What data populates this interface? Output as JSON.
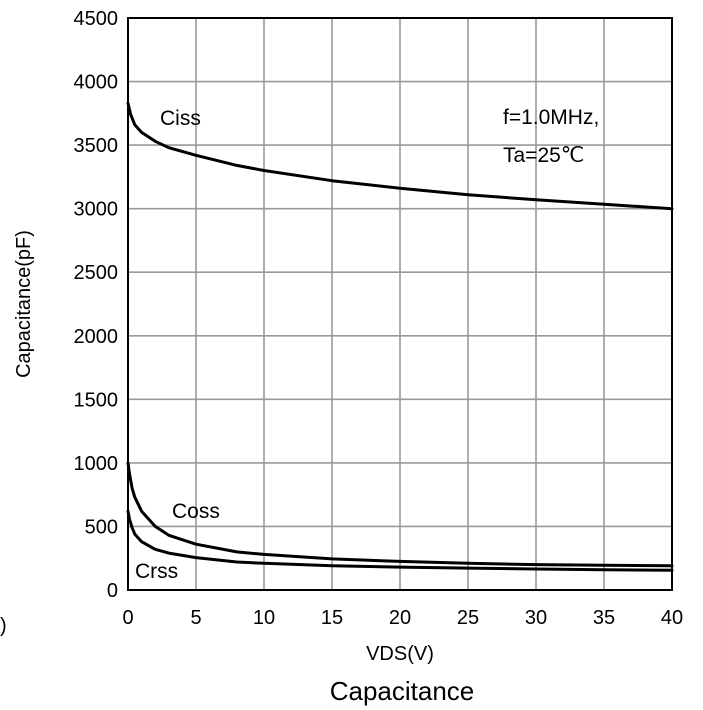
{
  "chart_data": {
    "type": "line",
    "xlabel": "VDS(V)",
    "ylabel": "Capacitance(pF)",
    "caption": "Capacitance",
    "xlim": [
      0,
      40
    ],
    "ylim": [
      0,
      4500
    ],
    "xticks": [
      0,
      5,
      10,
      15,
      20,
      25,
      30,
      35,
      40
    ],
    "yticks": [
      0,
      500,
      1000,
      1500,
      2000,
      2500,
      3000,
      3500,
      4000,
      4500
    ],
    "grid": true,
    "annotations": [
      "f=1.0MHz,",
      "Ta=25℃"
    ],
    "stray_text": ")",
    "series": [
      {
        "name": "Ciss",
        "x": [
          0,
          0.2,
          0.5,
          1,
          2,
          3,
          5,
          8,
          10,
          15,
          20,
          25,
          30,
          35,
          40
        ],
        "y": [
          3830,
          3740,
          3660,
          3600,
          3530,
          3480,
          3420,
          3340,
          3300,
          3220,
          3160,
          3110,
          3070,
          3035,
          3000
        ]
      },
      {
        "name": "Coss",
        "x": [
          0,
          0.1,
          0.3,
          0.5,
          1,
          2,
          3,
          5,
          8,
          10,
          15,
          20,
          25,
          30,
          35,
          40
        ],
        "y": [
          1000,
          920,
          800,
          730,
          620,
          500,
          430,
          360,
          300,
          280,
          245,
          225,
          210,
          200,
          195,
          190
        ]
      },
      {
        "name": "Crss",
        "x": [
          0,
          0.1,
          0.3,
          0.5,
          1,
          2,
          3,
          5,
          8,
          10,
          15,
          20,
          25,
          30,
          35,
          40
        ],
        "y": [
          620,
          560,
          490,
          440,
          380,
          320,
          290,
          255,
          220,
          210,
          190,
          180,
          172,
          165,
          160,
          155
        ]
      }
    ]
  }
}
